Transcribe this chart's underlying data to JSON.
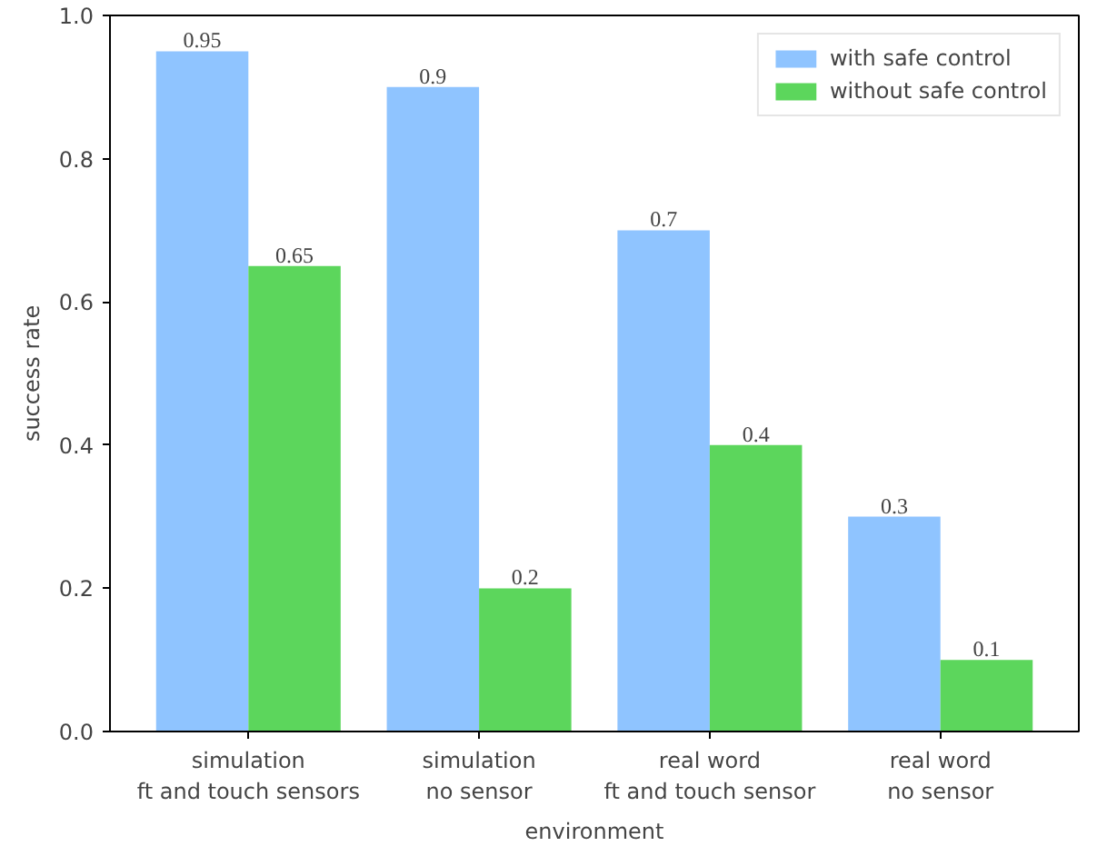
{
  "chart_data": {
    "type": "bar",
    "xlabel": "environment",
    "ylabel": "success rate",
    "categories": [
      "simulation\nft and touch sensors",
      "simulation\nno sensor",
      "real word\nft and touch sensor",
      "real word\nno sensor"
    ],
    "series": [
      {
        "name": "with safe control",
        "color": "#8fc4ff",
        "values": [
          0.95,
          0.9,
          0.7,
          0.3
        ]
      },
      {
        "name": "without safe control",
        "color": "#5cd65c",
        "values": [
          0.65,
          0.2,
          0.4,
          0.1
        ]
      }
    ],
    "ylim": [
      0,
      1.0
    ],
    "yticks": [
      {
        "value": 0,
        "label": "0.0"
      },
      0.2,
      0.4,
      0.6,
      0.8,
      {
        "value": 1.0,
        "label": "1.0"
      }
    ],
    "data_labels": true,
    "legend": "top right",
    "grid": false
  }
}
